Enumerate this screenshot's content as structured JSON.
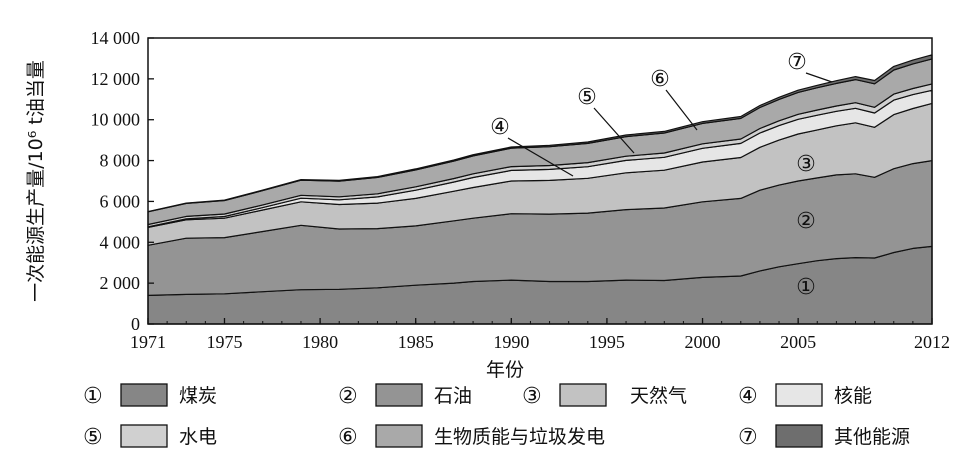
{
  "chart_data": {
    "type": "area",
    "xlabel": "年份",
    "ylabel": "一次能源生产量/10⁶ t油当量",
    "x_ticks": [
      "1971",
      "1975",
      "1980",
      "1985",
      "1990",
      "1995",
      "2000",
      "2005",
      "2012"
    ],
    "y_ticks": [
      "0",
      "2 000",
      "4 000",
      "6 000",
      "8 000",
      "10 000",
      "12 000",
      "14 000"
    ],
    "xlim": [
      1971,
      2012
    ],
    "ylim": [
      0,
      14000
    ],
    "x": [
      1971,
      1973,
      1975,
      1977,
      1979,
      1981,
      1983,
      1985,
      1987,
      1988,
      1990,
      1992,
      1994,
      1996,
      1998,
      2000,
      2002,
      2003,
      2004,
      2005,
      2006,
      2007,
      2008,
      2009,
      2010,
      2011,
      2012
    ],
    "series": [
      {
        "marker": "①",
        "name": "煤炭",
        "color": "#868686",
        "values": [
          1400,
          1450,
          1480,
          1580,
          1680,
          1700,
          1770,
          1900,
          2000,
          2080,
          2150,
          2080,
          2080,
          2150,
          2130,
          2280,
          2350,
          2600,
          2800,
          2950,
          3100,
          3200,
          3250,
          3230,
          3500,
          3700,
          3800
        ]
      },
      {
        "marker": "②",
        "name": "石油",
        "color": "#949494",
        "values": [
          2450,
          2750,
          2750,
          2950,
          3150,
          2950,
          2900,
          2900,
          3050,
          3100,
          3250,
          3300,
          3350,
          3450,
          3550,
          3700,
          3800,
          3950,
          4000,
          4050,
          4050,
          4100,
          4100,
          3950,
          4100,
          4150,
          4200
        ]
      },
      {
        "marker": "③",
        "name": "天然气",
        "color": "#c2c2c2",
        "values": [
          880,
          900,
          950,
          1050,
          1150,
          1200,
          1250,
          1350,
          1450,
          1500,
          1600,
          1650,
          1700,
          1800,
          1850,
          1950,
          2000,
          2100,
          2200,
          2300,
          2350,
          2400,
          2500,
          2450,
          2650,
          2700,
          2800
        ]
      },
      {
        "marker": "④",
        "name": "核能",
        "color": "#e6e6e6",
        "values": [
          30,
          50,
          80,
          120,
          180,
          230,
          300,
          400,
          450,
          490,
          520,
          540,
          570,
          610,
          630,
          670,
          690,
          700,
          710,
          720,
          720,
          710,
          710,
          700,
          710,
          680,
          640
        ]
      },
      {
        "marker": "⑤",
        "name": "水电",
        "color": "#d0d0d0",
        "values": [
          110,
          115,
          125,
          130,
          140,
          145,
          155,
          165,
          170,
          180,
          185,
          190,
          200,
          205,
          210,
          220,
          215,
          220,
          235,
          245,
          255,
          260,
          275,
          280,
          295,
          300,
          315
        ]
      },
      {
        "marker": "⑥",
        "name": "生物质能与垃圾发电",
        "color": "#a9a9a9",
        "values": [
          620,
          640,
          660,
          700,
          740,
          770,
          800,
          830,
          860,
          880,
          900,
          920,
          940,
          960,
          980,
          1000,
          1010,
          1030,
          1050,
          1070,
          1090,
          1110,
          1130,
          1150,
          1180,
          1200,
          1220
        ]
      },
      {
        "marker": "⑦",
        "name": "其他能源",
        "color": "#6e6e6e",
        "values": [
          10,
          15,
          20,
          25,
          30,
          35,
          40,
          45,
          50,
          55,
          60,
          65,
          70,
          75,
          80,
          85,
          90,
          95,
          100,
          110,
          120,
          130,
          145,
          160,
          175,
          190,
          205
        ]
      }
    ],
    "grid": false,
    "legend_position": "bottom"
  }
}
